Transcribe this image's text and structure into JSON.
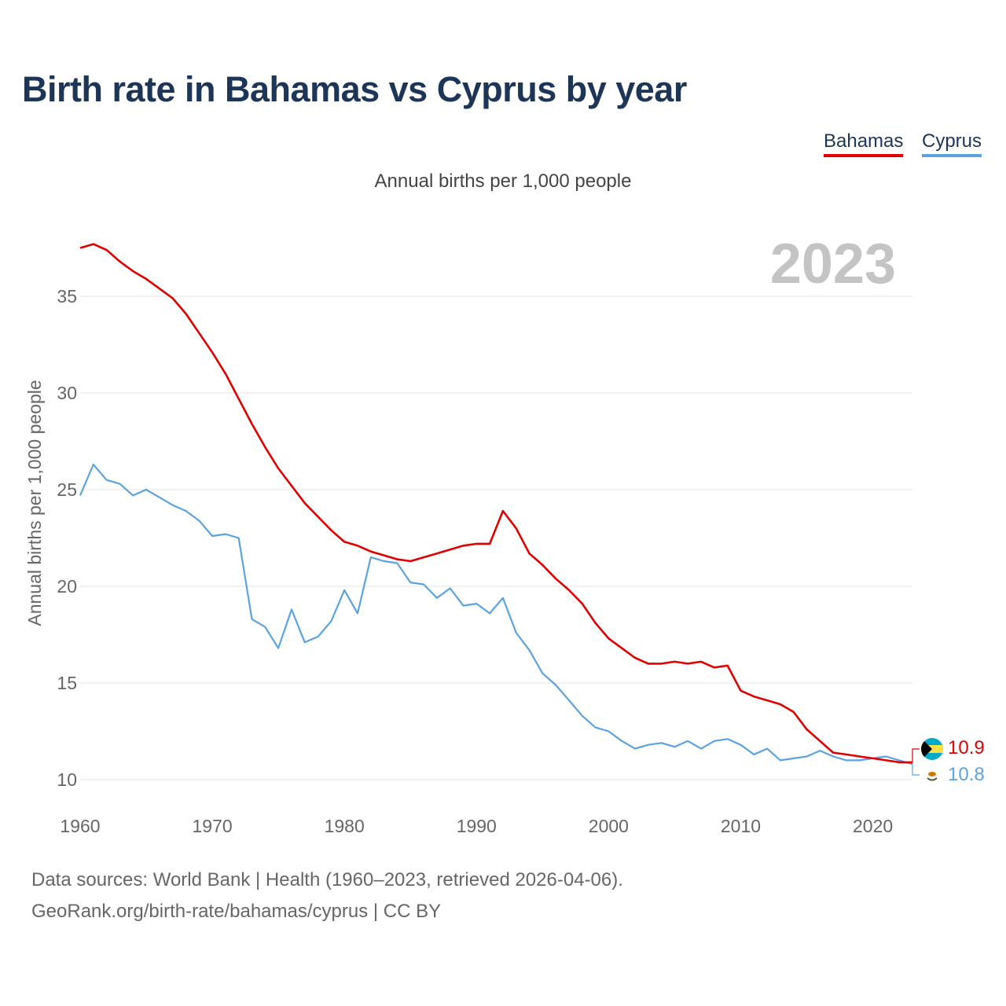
{
  "title": "Birth rate in Bahamas vs Cyprus by year",
  "subtitle": "Annual births per 1,000 people",
  "year_label": "2023",
  "legend": [
    {
      "name": "Bahamas",
      "color": "#e00000"
    },
    {
      "name": "Cyprus",
      "color": "#5ba3e0"
    }
  ],
  "footer": {
    "source": "Data sources: World Bank | Health (1960–2023, retrieved 2026-04-06).",
    "url": "GeoRank.org/birth-rate/bahamas/cyprus | CC BY"
  },
  "chart_data": {
    "type": "line",
    "title": "Birth rate in Bahamas vs Cyprus by year",
    "xlabel": "",
    "ylabel": "Annual births per 1,000 people",
    "xlim": [
      1960,
      2023
    ],
    "ylim": [
      10,
      37.5
    ],
    "yticks": [
      10,
      15,
      20,
      25,
      30,
      35
    ],
    "xticks": [
      1960,
      1970,
      1980,
      1990,
      2000,
      2010,
      2020
    ],
    "x": [
      1960,
      1961,
      1962,
      1963,
      1964,
      1965,
      1966,
      1967,
      1968,
      1969,
      1970,
      1971,
      1972,
      1973,
      1974,
      1975,
      1976,
      1977,
      1978,
      1979,
      1980,
      1981,
      1982,
      1983,
      1984,
      1985,
      1986,
      1987,
      1988,
      1989,
      1990,
      1991,
      1992,
      1993,
      1994,
      1995,
      1996,
      1997,
      1998,
      1999,
      2000,
      2001,
      2002,
      2003,
      2004,
      2005,
      2006,
      2007,
      2008,
      2009,
      2010,
      2011,
      2012,
      2013,
      2014,
      2015,
      2016,
      2017,
      2018,
      2019,
      2020,
      2021,
      2022,
      2023
    ],
    "series": [
      {
        "name": "Bahamas",
        "color": "#e00000",
        "end_label": "10.9",
        "values": [
          37.5,
          37.7,
          37.4,
          36.8,
          36.3,
          35.9,
          35.4,
          34.9,
          34.1,
          33.1,
          32.1,
          31.0,
          29.7,
          28.4,
          27.2,
          26.1,
          25.2,
          24.3,
          23.6,
          22.9,
          22.3,
          22.1,
          21.8,
          21.6,
          21.4,
          21.3,
          21.5,
          21.7,
          21.9,
          22.1,
          22.2,
          22.2,
          23.9,
          23.0,
          21.7,
          21.1,
          20.4,
          19.8,
          19.1,
          18.1,
          17.3,
          16.8,
          16.3,
          16.0,
          16.0,
          16.1,
          16.0,
          16.1,
          15.8,
          15.9,
          14.6,
          14.3,
          14.1,
          13.9,
          13.5,
          12.6,
          12.0,
          11.4,
          11.3,
          11.2,
          11.1,
          11.0,
          10.9,
          10.9
        ]
      },
      {
        "name": "Cyprus",
        "color": "#5ba3e0",
        "end_label": "10.8",
        "values": [
          24.7,
          26.3,
          25.5,
          25.3,
          24.7,
          25.0,
          24.6,
          24.2,
          23.9,
          23.4,
          22.6,
          22.7,
          22.5,
          18.3,
          17.9,
          16.8,
          18.8,
          17.1,
          17.4,
          18.2,
          19.8,
          18.6,
          21.5,
          21.3,
          21.2,
          20.2,
          20.1,
          19.4,
          19.9,
          19.0,
          19.1,
          18.6,
          19.4,
          17.6,
          16.7,
          15.5,
          14.9,
          14.1,
          13.3,
          12.7,
          12.5,
          12.0,
          11.6,
          11.8,
          11.9,
          11.7,
          12.0,
          11.6,
          12.0,
          12.1,
          11.8,
          11.3,
          11.6,
          11.0,
          11.1,
          11.2,
          11.5,
          11.2,
          11.0,
          11.0,
          11.1,
          11.2,
          11.0,
          10.8
        ]
      }
    ]
  }
}
